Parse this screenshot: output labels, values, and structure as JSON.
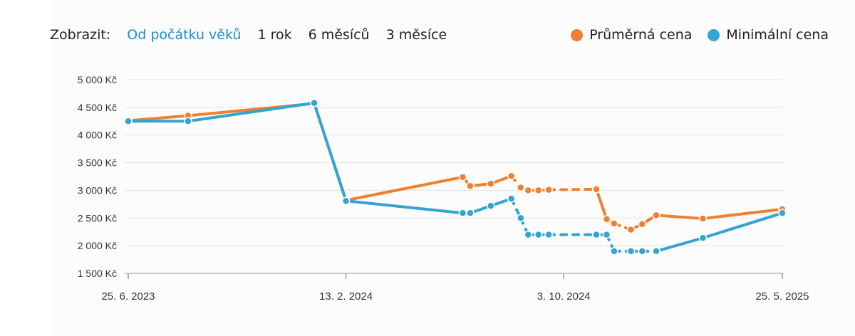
{
  "controls": {
    "label": "Zobrazit:",
    "options": [
      "Od počátku věků",
      "1 rok",
      "6 měsíců",
      "3 měsíce"
    ],
    "active_index": 0
  },
  "colors": {
    "avg": "#ee8130",
    "min": "#34a4d1",
    "grid": "#e3e3e3",
    "axis": "#9a9a9a",
    "active": "#1f8ccc"
  },
  "chart_data": {
    "type": "line",
    "ylim": [
      1500,
      5000
    ],
    "yticks": [
      {
        "value": 5000,
        "label": "5 000 Kč"
      },
      {
        "value": 4500,
        "label": "4 500 Kč"
      },
      {
        "value": 4000,
        "label": "4 000 Kč"
      },
      {
        "value": 3500,
        "label": "3 500 Kč"
      },
      {
        "value": 3000,
        "label": "3 000 Kč"
      },
      {
        "value": 2500,
        "label": "2 500 Kč"
      },
      {
        "value": 2000,
        "label": "2 000 Kč"
      },
      {
        "value": 1500,
        "label": "1 500 Kč"
      }
    ],
    "xlim": [
      "2023-06-25",
      "2025-05-25"
    ],
    "xticks": [
      {
        "date": "2023-06-25",
        "label": "25. 6. 2023"
      },
      {
        "date": "2024-02-13",
        "label": "13. 2. 2024"
      },
      {
        "date": "2024-10-03",
        "label": "3. 10. 2024"
      },
      {
        "date": "2025-05-25",
        "label": "25. 5. 2025"
      }
    ],
    "grid": true,
    "legend_position": "top-right",
    "series": [
      {
        "name": "Průměrná cena",
        "color": "#ee8130",
        "points": [
          {
            "x": "2023-06-25",
            "y": 4260
          },
          {
            "x": "2023-08-28",
            "y": 4350
          },
          {
            "x": "2024-01-10",
            "y": 4570
          },
          {
            "x": "2024-02-13",
            "y": 2820
          },
          {
            "x": "2024-06-17",
            "y": 3240
          },
          {
            "x": "2024-06-25",
            "y": 3080
          },
          {
            "x": "2024-07-17",
            "y": 3120
          },
          {
            "x": "2024-08-08",
            "y": 3260,
            "gap_after": true
          },
          {
            "x": "2024-08-18",
            "y": 3050
          },
          {
            "x": "2024-08-26",
            "y": 3000
          },
          {
            "x": "2024-09-06",
            "y": 3000
          },
          {
            "x": "2024-09-17",
            "y": 3010,
            "gap_after": true
          },
          {
            "x": "2024-11-07",
            "y": 3020
          },
          {
            "x": "2024-11-18",
            "y": 2480
          },
          {
            "x": "2024-11-26",
            "y": 2400,
            "gap_after": true
          },
          {
            "x": "2024-12-14",
            "y": 2290
          },
          {
            "x": "2024-12-26",
            "y": 2390
          },
          {
            "x": "2025-01-10",
            "y": 2550
          },
          {
            "x": "2025-03-01",
            "y": 2490
          },
          {
            "x": "2025-05-25",
            "y": 2660
          }
        ]
      },
      {
        "name": "Minimální cena",
        "color": "#34a4d1",
        "points": [
          {
            "x": "2023-06-25",
            "y": 4250
          },
          {
            "x": "2023-08-28",
            "y": 4250
          },
          {
            "x": "2024-01-10",
            "y": 4580
          },
          {
            "x": "2024-02-13",
            "y": 2810
          },
          {
            "x": "2024-06-17",
            "y": 2590,
            "gap_after": true
          },
          {
            "x": "2024-06-25",
            "y": 2590
          },
          {
            "x": "2024-07-17",
            "y": 2720
          },
          {
            "x": "2024-08-08",
            "y": 2850,
            "gap_after": true
          },
          {
            "x": "2024-08-18",
            "y": 2500,
            "gap_after": true
          },
          {
            "x": "2024-08-26",
            "y": 2200,
            "gap_after": true
          },
          {
            "x": "2024-09-06",
            "y": 2200,
            "gap_after": true
          },
          {
            "x": "2024-09-17",
            "y": 2200,
            "gap_after": true
          },
          {
            "x": "2024-11-07",
            "y": 2200,
            "gap_after": true
          },
          {
            "x": "2024-11-18",
            "y": 2200,
            "gap_after": true
          },
          {
            "x": "2024-11-26",
            "y": 1900,
            "gap_after": true
          },
          {
            "x": "2024-12-14",
            "y": 1900,
            "gap_after": true
          },
          {
            "x": "2024-12-26",
            "y": 1900,
            "gap_after": true
          },
          {
            "x": "2025-01-10",
            "y": 1900
          },
          {
            "x": "2025-03-01",
            "y": 2140
          },
          {
            "x": "2025-05-25",
            "y": 2590
          }
        ]
      }
    ]
  }
}
